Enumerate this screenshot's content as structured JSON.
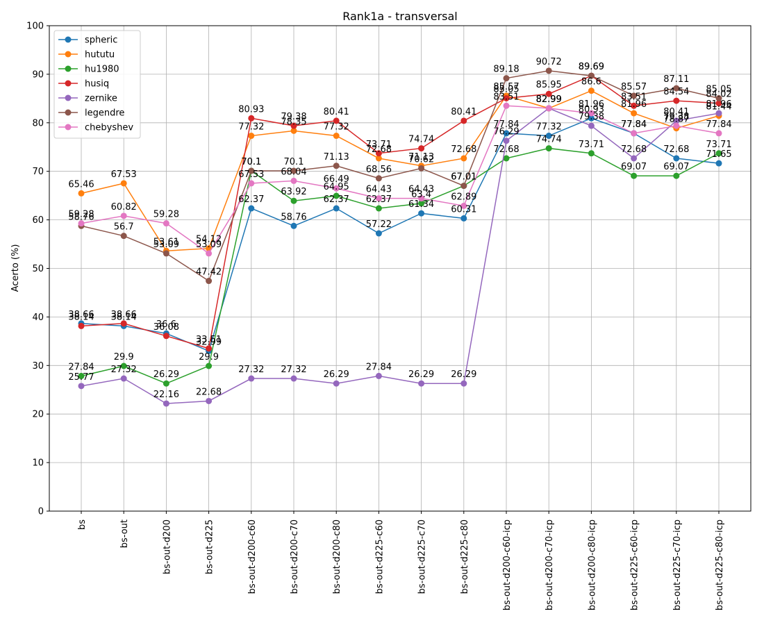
{
  "chart_data": {
    "type": "line",
    "title": "Rank1a - transversal",
    "xlabel": "",
    "ylabel": "Acerto (%)",
    "ylim": [
      0,
      100
    ],
    "yticks": [
      0,
      10,
      20,
      30,
      40,
      50,
      60,
      70,
      80,
      90,
      100
    ],
    "grid": true,
    "legend_position": "top-left",
    "categories": [
      "bs",
      "bs-out",
      "bs-out-d200",
      "bs-out-d225",
      "bs-out-d200-c60",
      "bs-out-d200-c70",
      "bs-out-d200-c80",
      "bs-out-d225-c60",
      "bs-out-d225-c70",
      "bs-out-d225-c80",
      "bs-out-d200-c60-icp",
      "bs-out-d200-c70-icp",
      "bs-out-d200-c80-icp",
      "bs-out-d225-c60-icp",
      "bs-out-d225-c70-icp",
      "bs-out-d225-c80-icp"
    ],
    "series": [
      {
        "name": "spheric",
        "color": "#1f77b4",
        "values": [
          38.66,
          38.14,
          36.6,
          32.99,
          62.37,
          58.76,
          62.37,
          57.22,
          61.34,
          60.31,
          77.84,
          77.32,
          80.93,
          77.84,
          72.68,
          71.65
        ]
      },
      {
        "name": "hututu",
        "color": "#ff7f0e",
        "values": [
          65.46,
          67.53,
          53.61,
          54.12,
          77.32,
          78.35,
          77.32,
          72.68,
          71.13,
          72.68,
          85.57,
          82.99,
          86.6,
          81.96,
          78.87,
          81.44
        ]
      },
      {
        "name": "hu1980",
        "color": "#2ca02c",
        "values": [
          27.84,
          29.9,
          26.29,
          29.9,
          70.1,
          63.92,
          64.95,
          62.37,
          63.4,
          67.01,
          72.68,
          74.74,
          73.71,
          69.07,
          69.07,
          73.71
        ]
      },
      {
        "name": "husiq",
        "color": "#d62728",
        "values": [
          38.14,
          38.66,
          36.08,
          33.51,
          80.93,
          79.38,
          80.41,
          73.71,
          74.74,
          80.41,
          85.05,
          85.95,
          89.69,
          83.51,
          84.54,
          84.02
        ]
      },
      {
        "name": "zernike",
        "color": "#9467bd",
        "values": [
          25.77,
          27.32,
          22.16,
          22.68,
          27.32,
          27.32,
          26.29,
          27.84,
          26.29,
          26.29,
          76.29,
          82.99,
          79.38,
          72.68,
          80.41,
          81.96
        ]
      },
      {
        "name": "legendre",
        "color": "#8c564b",
        "values": [
          58.76,
          56.7,
          53.09,
          47.42,
          70.1,
          70.1,
          71.13,
          68.56,
          70.62,
          67.01,
          89.18,
          90.72,
          89.69,
          85.57,
          87.11,
          85.05
        ]
      },
      {
        "name": "chebyshev",
        "color": "#e377c2",
        "values": [
          59.28,
          60.82,
          59.28,
          53.09,
          67.53,
          68.04,
          66.49,
          64.43,
          64.43,
          62.89,
          83.51,
          82.99,
          81.96,
          77.84,
          79.38,
          77.84
        ]
      }
    ]
  }
}
